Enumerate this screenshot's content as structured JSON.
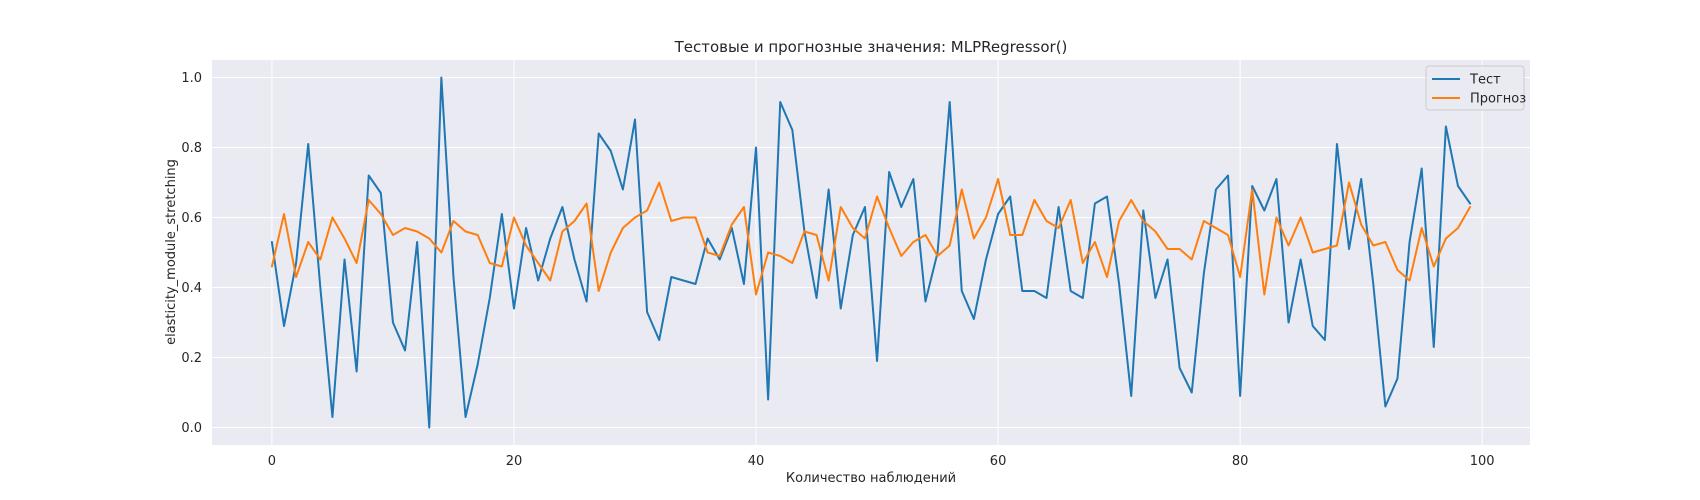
{
  "chart_data": {
    "type": "line",
    "title": "Тестовые и прогнозные значения: MLPRegressor()",
    "xlabel": "Количество наблюдений",
    "ylabel": "elasticity_module_stretching",
    "xlim": [
      -4.95,
      103.95
    ],
    "ylim": [
      -0.05,
      1.05
    ],
    "x_ticks": [
      0,
      20,
      40,
      60,
      80,
      100
    ],
    "y_ticks": [
      0.0,
      0.2,
      0.4,
      0.6,
      0.8,
      1.0
    ],
    "x_tick_labels": [
      "0",
      "20",
      "40",
      "60",
      "80",
      "100"
    ],
    "y_tick_labels": [
      "0.0",
      "0.2",
      "0.4",
      "0.6",
      "0.8",
      "1.0"
    ],
    "grid": true,
    "legend_position": "top-right",
    "x": [
      0,
      1,
      2,
      3,
      4,
      5,
      6,
      7,
      8,
      9,
      10,
      11,
      12,
      13,
      14,
      15,
      16,
      17,
      18,
      19,
      20,
      21,
      22,
      23,
      24,
      25,
      26,
      27,
      28,
      29,
      30,
      31,
      32,
      33,
      34,
      35,
      36,
      37,
      38,
      39,
      40,
      41,
      42,
      43,
      44,
      45,
      46,
      47,
      48,
      49,
      50,
      51,
      52,
      53,
      54,
      55,
      56,
      57,
      58,
      59,
      60,
      61,
      62,
      63,
      64,
      65,
      66,
      67,
      68,
      69,
      70,
      71,
      72,
      73,
      74,
      75,
      76,
      77,
      78,
      79,
      80,
      81,
      82,
      83,
      84,
      85,
      86,
      87,
      88,
      89,
      90,
      91,
      92,
      93,
      94,
      95,
      96,
      97,
      98,
      99
    ],
    "series": [
      {
        "name": "Тест",
        "color": "#1f77b4",
        "values": [
          0.53,
          0.29,
          0.47,
          0.81,
          0.4,
          0.03,
          0.48,
          0.16,
          0.72,
          0.67,
          0.3,
          0.22,
          0.53,
          0.0,
          1.0,
          0.43,
          0.03,
          0.18,
          0.37,
          0.61,
          0.34,
          0.57,
          0.42,
          0.54,
          0.63,
          0.48,
          0.36,
          0.84,
          0.79,
          0.68,
          0.88,
          0.33,
          0.25,
          0.43,
          0.42,
          0.41,
          0.54,
          0.48,
          0.57,
          0.41,
          0.8,
          0.08,
          0.93,
          0.85,
          0.56,
          0.37,
          0.68,
          0.34,
          0.55,
          0.63,
          0.19,
          0.73,
          0.63,
          0.71,
          0.36,
          0.5,
          0.93,
          0.39,
          0.31,
          0.48,
          0.61,
          0.66,
          0.39,
          0.39,
          0.37,
          0.63,
          0.39,
          0.37,
          0.64,
          0.66,
          0.41,
          0.09,
          0.62,
          0.37,
          0.48,
          0.17,
          0.1,
          0.44,
          0.68,
          0.72,
          0.09,
          0.69,
          0.62,
          0.71,
          0.3,
          0.48,
          0.29,
          0.25,
          0.81,
          0.51,
          0.71,
          0.41,
          0.06,
          0.14,
          0.53,
          0.74,
          0.23,
          0.86,
          0.69,
          0.64
        ]
      },
      {
        "name": "Прогноз",
        "color": "#ff7f0e",
        "values": [
          0.46,
          0.61,
          0.43,
          0.53,
          0.48,
          0.6,
          0.54,
          0.47,
          0.65,
          0.61,
          0.55,
          0.57,
          0.56,
          0.54,
          0.5,
          0.59,
          0.56,
          0.55,
          0.47,
          0.46,
          0.6,
          0.52,
          0.47,
          0.42,
          0.56,
          0.59,
          0.64,
          0.39,
          0.5,
          0.57,
          0.6,
          0.62,
          0.7,
          0.59,
          0.6,
          0.6,
          0.5,
          0.49,
          0.58,
          0.63,
          0.38,
          0.5,
          0.49,
          0.47,
          0.56,
          0.55,
          0.42,
          0.63,
          0.57,
          0.54,
          0.66,
          0.57,
          0.49,
          0.53,
          0.55,
          0.49,
          0.52,
          0.68,
          0.54,
          0.6,
          0.71,
          0.55,
          0.55,
          0.65,
          0.59,
          0.57,
          0.65,
          0.47,
          0.53,
          0.43,
          0.59,
          0.65,
          0.59,
          0.56,
          0.51,
          0.51,
          0.48,
          0.59,
          0.57,
          0.55,
          0.43,
          0.68,
          0.38,
          0.6,
          0.52,
          0.6,
          0.5,
          0.51,
          0.52,
          0.7,
          0.58,
          0.52,
          0.53,
          0.45,
          0.42,
          0.57,
          0.46,
          0.54,
          0.57,
          0.63
        ]
      }
    ]
  }
}
